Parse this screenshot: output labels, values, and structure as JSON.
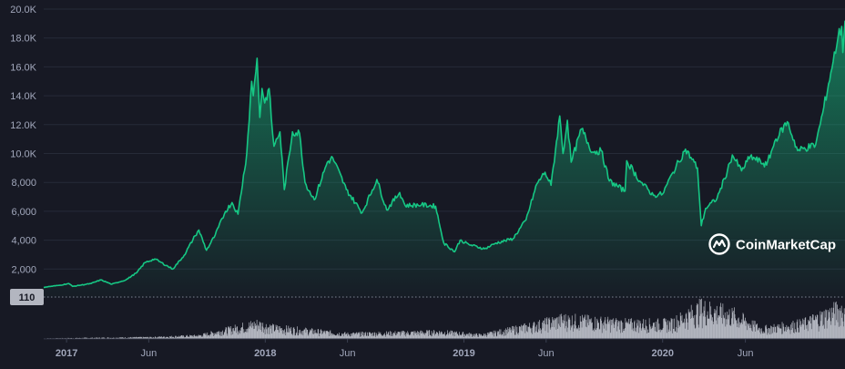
{
  "watermark": {
    "brand": "CoinMarketCap",
    "icon": "coinmarketcap-logo-icon"
  },
  "colors": {
    "background": "#171924",
    "line": "#16c784",
    "area_top": "#16c784",
    "volume": "#c9ccd6",
    "grid": "#262a38",
    "tick_text": "#a1a7bb",
    "badge_bg": "#b3b6c0",
    "badge_text": "#171924"
  },
  "volume_badge": "110",
  "chart_data": {
    "type": "area",
    "title": "",
    "xlabel": "",
    "ylabel": "",
    "ylim": [
      0,
      20000
    ],
    "y_ticks": [
      {
        "value": 2000,
        "label": "2,000"
      },
      {
        "value": 4000,
        "label": "4,000"
      },
      {
        "value": 6000,
        "label": "6,000"
      },
      {
        "value": 8000,
        "label": "8,000"
      },
      {
        "value": 10000,
        "label": "10.0K"
      },
      {
        "value": 12000,
        "label": "12.0K"
      },
      {
        "value": 14000,
        "label": "14.0K"
      },
      {
        "value": 16000,
        "label": "16.0K"
      },
      {
        "value": 18000,
        "label": "18.0K"
      },
      {
        "value": 20000,
        "label": "20.0K"
      }
    ],
    "x_range": [
      "2016-11-20",
      "2020-12-01"
    ],
    "x_ticks": [
      {
        "date": "2017-01-01",
        "label": "2017",
        "bold": true
      },
      {
        "date": "2017-06-01",
        "label": "Jun",
        "bold": false
      },
      {
        "date": "2018-01-01",
        "label": "2018",
        "bold": true
      },
      {
        "date": "2018-06-01",
        "label": "Jun",
        "bold": false
      },
      {
        "date": "2019-01-01",
        "label": "2019",
        "bold": true
      },
      {
        "date": "2019-06-01",
        "label": "Jun",
        "bold": false
      },
      {
        "date": "2020-01-01",
        "label": "2020",
        "bold": true
      },
      {
        "date": "2020-06-01",
        "label": "Jun",
        "bold": false
      }
    ],
    "grid": true,
    "series": [
      {
        "points": [
          [
            "2016-11-20",
            740
          ],
          [
            "2016-12-20",
            880
          ],
          [
            "2017-01-05",
            1000
          ],
          [
            "2017-01-12",
            800
          ],
          [
            "2017-02-15",
            1000
          ],
          [
            "2017-03-05",
            1250
          ],
          [
            "2017-03-25",
            950
          ],
          [
            "2017-04-20",
            1250
          ],
          [
            "2017-05-10",
            1750
          ],
          [
            "2017-05-25",
            2450
          ],
          [
            "2017-06-12",
            2700
          ],
          [
            "2017-07-15",
            2000
          ],
          [
            "2017-08-05",
            2950
          ],
          [
            "2017-08-25",
            4300
          ],
          [
            "2017-09-01",
            4700
          ],
          [
            "2017-09-15",
            3300
          ],
          [
            "2017-10-01",
            4350
          ],
          [
            "2017-10-20",
            6000
          ],
          [
            "2017-11-01",
            6600
          ],
          [
            "2017-11-12",
            5800
          ],
          [
            "2017-11-28",
            10000
          ],
          [
            "2017-12-07",
            15000
          ],
          [
            "2017-12-10",
            14000
          ],
          [
            "2017-12-17",
            16600
          ],
          [
            "2017-12-22",
            12500
          ],
          [
            "2017-12-26",
            14500
          ],
          [
            "2017-12-31",
            13500
          ],
          [
            "2018-01-08",
            14500
          ],
          [
            "2018-01-12",
            12500
          ],
          [
            "2018-01-17",
            10500
          ],
          [
            "2018-01-28",
            11500
          ],
          [
            "2018-02-05",
            7500
          ],
          [
            "2018-02-20",
            11500
          ],
          [
            "2018-03-05",
            11400
          ],
          [
            "2018-03-15",
            8000
          ],
          [
            "2018-04-01",
            6800
          ],
          [
            "2018-04-25",
            9400
          ],
          [
            "2018-05-05",
            9700
          ],
          [
            "2018-05-30",
            7500
          ],
          [
            "2018-06-28",
            5900
          ],
          [
            "2018-07-25",
            8200
          ],
          [
            "2018-08-12",
            6100
          ],
          [
            "2018-09-05",
            7300
          ],
          [
            "2018-09-15",
            6400
          ],
          [
            "2018-10-15",
            6450
          ],
          [
            "2018-11-10",
            6350
          ],
          [
            "2018-11-20",
            4600
          ],
          [
            "2018-11-25",
            3800
          ],
          [
            "2018-12-15",
            3200
          ],
          [
            "2018-12-25",
            4000
          ],
          [
            "2019-01-10",
            3700
          ],
          [
            "2019-02-08",
            3400
          ],
          [
            "2019-03-01",
            3800
          ],
          [
            "2019-04-01",
            4100
          ],
          [
            "2019-04-25",
            5400
          ],
          [
            "2019-05-15",
            7900
          ],
          [
            "2019-05-30",
            8700
          ],
          [
            "2019-06-10",
            7800
          ],
          [
            "2019-06-26",
            12600
          ],
          [
            "2019-07-02",
            10000
          ],
          [
            "2019-07-10",
            12300
          ],
          [
            "2019-07-17",
            9400
          ],
          [
            "2019-08-05",
            11700
          ],
          [
            "2019-08-25",
            10100
          ],
          [
            "2019-09-10",
            10200
          ],
          [
            "2019-09-25",
            8100
          ],
          [
            "2019-10-24",
            7400
          ],
          [
            "2019-10-27",
            9500
          ],
          [
            "2019-11-20",
            8100
          ],
          [
            "2019-12-15",
            7100
          ],
          [
            "2020-01-01",
            7200
          ],
          [
            "2020-01-20",
            8700
          ],
          [
            "2020-02-12",
            10300
          ],
          [
            "2020-03-05",
            9000
          ],
          [
            "2020-03-12",
            5000
          ],
          [
            "2020-03-20",
            6200
          ],
          [
            "2020-04-10",
            6900
          ],
          [
            "2020-04-29",
            8800
          ],
          [
            "2020-05-08",
            9900
          ],
          [
            "2020-05-25",
            8800
          ],
          [
            "2020-06-10",
            9800
          ],
          [
            "2020-07-10",
            9200
          ],
          [
            "2020-07-27",
            11000
          ],
          [
            "2020-08-17",
            12200
          ],
          [
            "2020-09-05",
            10200
          ],
          [
            "2020-10-08",
            10600
          ],
          [
            "2020-10-21",
            12800
          ],
          [
            "2020-11-05",
            15600
          ],
          [
            "2020-11-18",
            18000
          ],
          [
            "2020-11-25",
            18800
          ],
          [
            "2020-11-27",
            17000
          ],
          [
            "2020-12-01",
            19200
          ]
        ]
      }
    ],
    "volume_ticks": [
      {
        "value": 110,
        "label": "110"
      }
    ],
    "volume_envelope": [
      [
        "2016-11-20",
        2
      ],
      [
        "2017-06-01",
        6
      ],
      [
        "2017-09-01",
        12
      ],
      [
        "2017-12-17",
        55
      ],
      [
        "2018-01-15",
        40
      ],
      [
        "2018-06-01",
        18
      ],
      [
        "2018-11-20",
        25
      ],
      [
        "2019-02-01",
        14
      ],
      [
        "2019-05-15",
        50
      ],
      [
        "2019-07-01",
        70
      ],
      [
        "2019-10-25",
        55
      ],
      [
        "2020-01-15",
        55
      ],
      [
        "2020-03-12",
        110
      ],
      [
        "2020-05-10",
        85
      ],
      [
        "2020-07-01",
        35
      ],
      [
        "2020-09-15",
        55
      ],
      [
        "2020-11-25",
        110
      ],
      [
        "2020-12-01",
        80
      ]
    ]
  }
}
